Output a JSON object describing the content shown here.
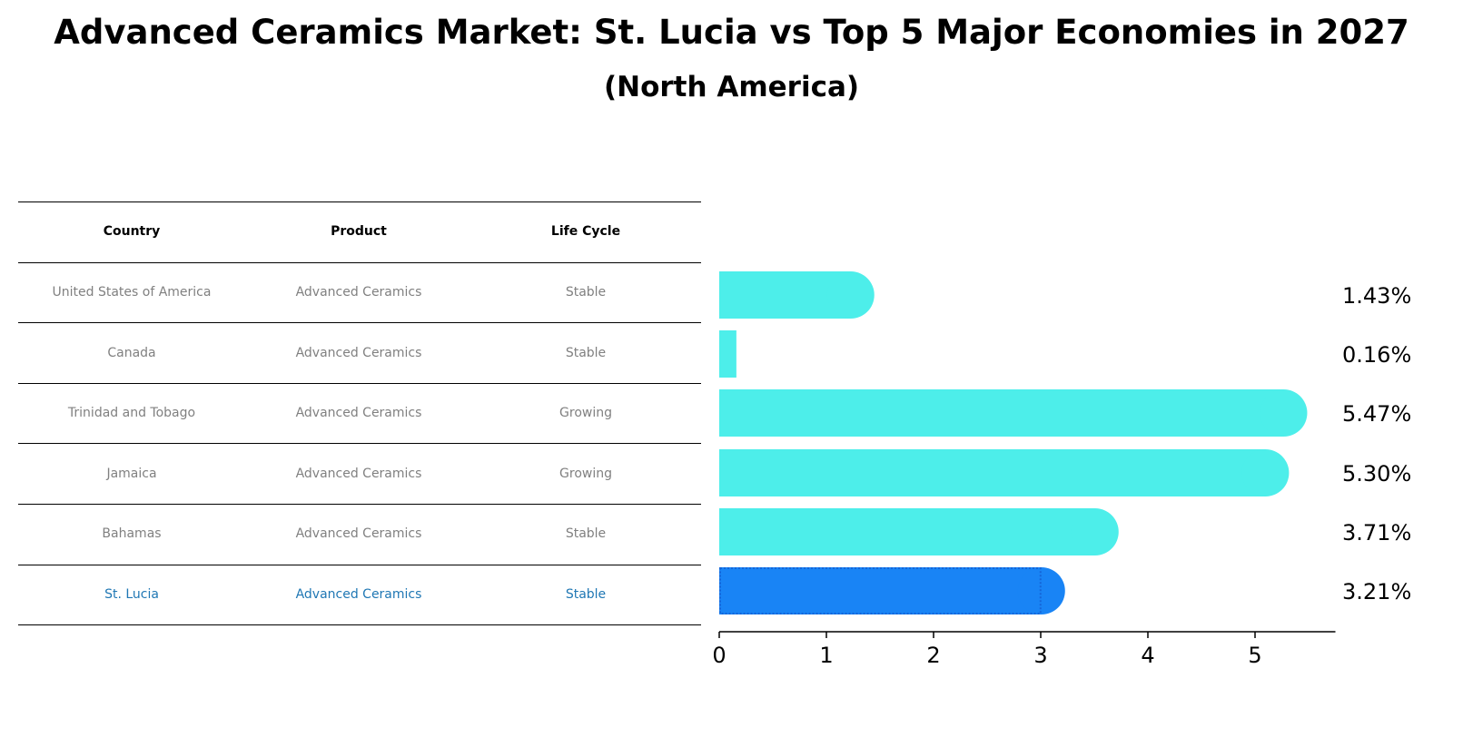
{
  "title": "Advanced Ceramics Market: St. Lucia vs Top 5 Major Economies in 2027",
  "subtitle": "(North America)",
  "table": {
    "headers": [
      "Country",
      "Product",
      "Life Cycle"
    ],
    "rows": [
      [
        "United States of America",
        "Advanced Ceramics",
        "Stable"
      ],
      [
        "Canada",
        "Advanced Ceramics",
        "Stable"
      ],
      [
        "Trinidad and Tobago",
        "Advanced Ceramics",
        "Growing"
      ],
      [
        "Jamaica",
        "Advanced Ceramics",
        "Growing"
      ],
      [
        "Bahamas",
        "Advanced Ceramics",
        "Stable"
      ],
      [
        "St. Lucia",
        "Advanced Ceramics",
        "Stable"
      ]
    ],
    "highlight_row": 5,
    "highlight_color": "#1f77b4",
    "text_color": "#808080"
  },
  "chart_data": {
    "type": "bar",
    "orientation": "horizontal",
    "categories": [
      "United States of America",
      "Canada",
      "Trinidad and Tobago",
      "Jamaica",
      "Bahamas",
      "St. Lucia"
    ],
    "values": [
      1.43,
      0.16,
      5.47,
      5.3,
      3.71,
      3.21
    ],
    "value_labels": [
      "1.43%",
      "0.16%",
      "5.47%",
      "5.30%",
      "3.71%",
      "3.21%"
    ],
    "xlim": [
      0,
      5.75
    ],
    "xticks": [
      0,
      1,
      2,
      3,
      4,
      5
    ],
    "bar_color": "#4deeea",
    "highlight_color": "#1984f5",
    "highlight_index": 5,
    "grid": false
  }
}
